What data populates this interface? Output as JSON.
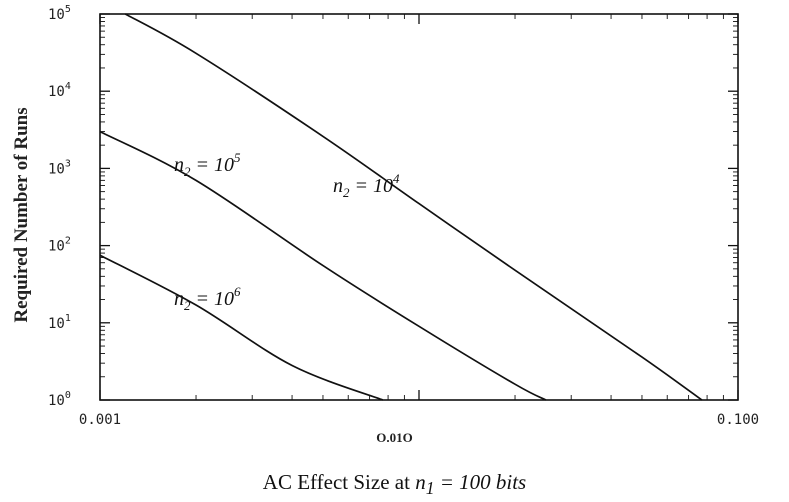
{
  "chart_data": {
    "type": "line",
    "xscale": "log",
    "yscale": "log",
    "xlim": [
      0.001,
      0.1
    ],
    "ylim": [
      1,
      100000
    ],
    "ylabel": "Required Number of Runs",
    "x_tick_labels": [
      "0.001",
      "0.100"
    ],
    "x_mid_label": "O.01O",
    "xlabel_parts": {
      "prefix": "AC Effect Size at ",
      "var": "n",
      "sub": "1",
      "rest": " = 100 bits"
    },
    "y_ticks": [
      {
        "base": "10",
        "exp": "5"
      },
      {
        "base": "10",
        "exp": "4"
      },
      {
        "base": "10",
        "exp": "3"
      },
      {
        "base": "10",
        "exp": "2"
      },
      {
        "base": "10",
        "exp": "1"
      },
      {
        "base": "10",
        "exp": "0"
      }
    ],
    "series": [
      {
        "name": "n2 = 10^4",
        "label_var": "n",
        "label_sub": "2",
        "label_mid": " = 10",
        "label_exp": "4",
        "points": [
          [
            0.0012,
            100000
          ],
          [
            0.002,
            31000
          ],
          [
            0.005,
            2600
          ],
          [
            0.01,
            350
          ],
          [
            0.02,
            48
          ],
          [
            0.05,
            3.6
          ],
          [
            0.077,
            1
          ]
        ]
      },
      {
        "name": "n2 = 10^5",
        "label_var": "n",
        "label_sub": "2",
        "label_mid": " = 10",
        "label_exp": "5",
        "points": [
          [
            0.001,
            3000
          ],
          [
            0.002,
            700
          ],
          [
            0.005,
            55
          ],
          [
            0.01,
            9
          ],
          [
            0.02,
            1.6
          ],
          [
            0.025,
            1
          ]
        ]
      },
      {
        "name": "n2 = 10^6",
        "label_var": "n",
        "label_sub": "2",
        "label_mid": " = 10",
        "label_exp": "6",
        "points": [
          [
            0.001,
            75
          ],
          [
            0.002,
            17
          ],
          [
            0.004,
            2.8
          ],
          [
            0.0077,
            1
          ]
        ]
      }
    ]
  }
}
